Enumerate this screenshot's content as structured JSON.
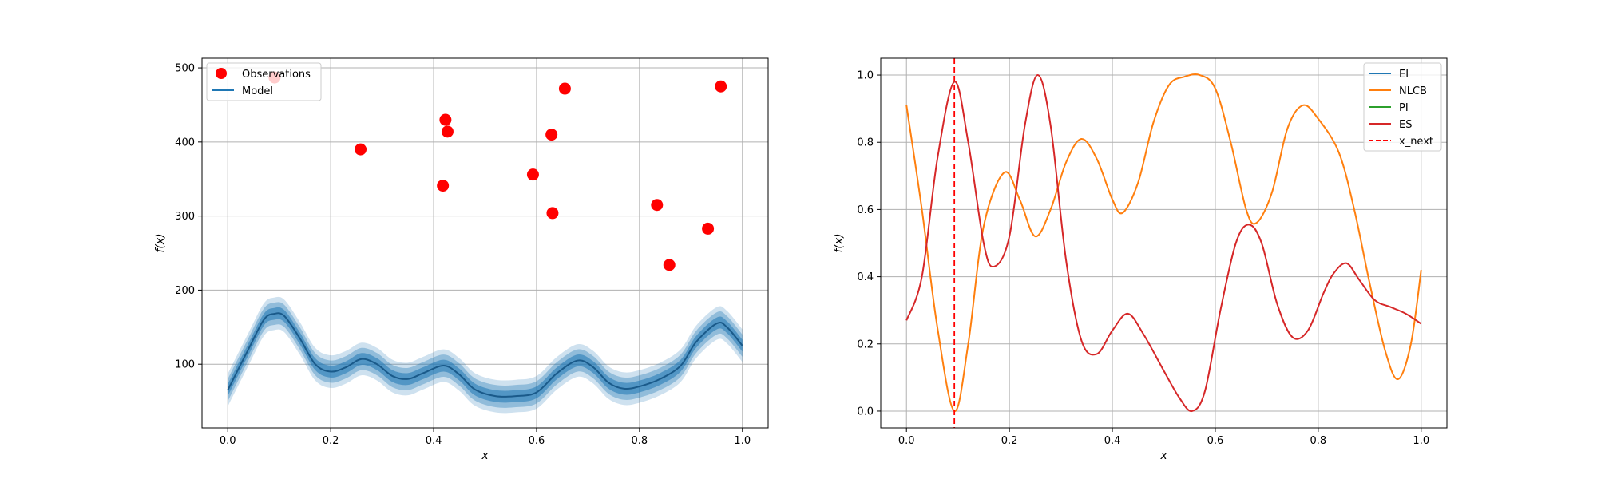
{
  "chart_data": [
    {
      "type": "scatter",
      "title": "",
      "xlabel": "x",
      "ylabel": "f(x)",
      "xlim": [
        -0.05,
        1.05
      ],
      "ylim": [
        14,
        513
      ],
      "xticks": [
        0.0,
        0.2,
        0.4,
        0.6,
        0.8,
        1.0
      ],
      "xtick_labels": [
        "0.0",
        "0.2",
        "0.4",
        "0.6",
        "0.8",
        "1.0"
      ],
      "yticks": [
        100,
        200,
        300,
        400,
        500
      ],
      "ytick_labels": [
        "100",
        "200",
        "300",
        "400",
        "500"
      ],
      "grid": true,
      "legend_position": "top-left",
      "legend": [
        {
          "label": "Observations",
          "marker": "dot",
          "color": "#ff0000"
        },
        {
          "label": "Model",
          "marker": "line",
          "color": "#1f77b4"
        }
      ],
      "observations": {
        "name": "Observations",
        "color": "#ff0000",
        "x": [
          0.091,
          0.258,
          0.418,
          0.423,
          0.427,
          0.593,
          0.629,
          0.631,
          0.655,
          0.834,
          0.858,
          0.933,
          0.958
        ],
        "y": [
          487,
          390,
          341,
          430,
          414,
          356,
          410,
          304,
          472,
          315,
          234,
          283,
          475
        ]
      },
      "model": {
        "name": "Model",
        "color": "#1f77b4",
        "x": [
          0.0,
          0.04,
          0.07,
          0.09,
          0.11,
          0.14,
          0.17,
          0.2,
          0.23,
          0.26,
          0.29,
          0.32,
          0.35,
          0.38,
          0.42,
          0.45,
          0.48,
          0.52,
          0.56,
          0.6,
          0.64,
          0.68,
          0.71,
          0.74,
          0.77,
          0.8,
          0.84,
          0.88,
          0.91,
          0.95,
          0.97,
          1.0
        ],
        "mean": [
          65,
          120,
          160,
          168,
          165,
          135,
          100,
          90,
          96,
          107,
          100,
          84,
          80,
          88,
          98,
          86,
          66,
          57,
          57,
          62,
          88,
          105,
          96,
          75,
          67,
          70,
          80,
          98,
          130,
          155,
          150,
          125
        ],
        "band_half_widths": [
          22,
          15,
          8
        ]
      }
    },
    {
      "type": "line",
      "title": "",
      "xlabel": "x",
      "ylabel": "f(x)",
      "xlim": [
        -0.05,
        1.05
      ],
      "ylim": [
        -0.05,
        1.05
      ],
      "xticks": [
        0.0,
        0.2,
        0.4,
        0.6,
        0.8,
        1.0
      ],
      "xtick_labels": [
        "0.0",
        "0.2",
        "0.4",
        "0.6",
        "0.8",
        "1.0"
      ],
      "yticks": [
        0.0,
        0.2,
        0.4,
        0.6,
        0.8,
        1.0
      ],
      "ytick_labels": [
        "0.0",
        "0.2",
        "0.4",
        "0.6",
        "0.8",
        "1.0"
      ],
      "grid": true,
      "legend_position": "top-right",
      "legend": [
        {
          "label": "EI",
          "style": "solid",
          "color": "#1f77b4"
        },
        {
          "label": "NLCB",
          "style": "solid",
          "color": "#ff7f0e"
        },
        {
          "label": "PI",
          "style": "solid",
          "color": "#2ca02c"
        },
        {
          "label": "ES",
          "style": "solid",
          "color": "#d62728"
        },
        {
          "label": "x_next",
          "style": "dashed",
          "color": "#ff0000"
        }
      ],
      "series": [
        {
          "name": "NLCB",
          "color": "#ff7f0e",
          "x": [
            0.0,
            0.03,
            0.06,
            0.093,
            0.12,
            0.15,
            0.19,
            0.22,
            0.25,
            0.28,
            0.31,
            0.34,
            0.37,
            0.4,
            0.42,
            0.45,
            0.48,
            0.51,
            0.54,
            0.57,
            0.6,
            0.63,
            0.66,
            0.68,
            0.71,
            0.74,
            0.77,
            0.8,
            0.84,
            0.87,
            0.9,
            0.93,
            0.955,
            0.98,
            1.0
          ],
          "y": [
            0.91,
            0.6,
            0.25,
            0.0,
            0.2,
            0.55,
            0.71,
            0.63,
            0.52,
            0.6,
            0.74,
            0.81,
            0.75,
            0.63,
            0.59,
            0.68,
            0.86,
            0.97,
            0.995,
            1.0,
            0.96,
            0.8,
            0.6,
            0.56,
            0.65,
            0.84,
            0.91,
            0.87,
            0.77,
            0.6,
            0.38,
            0.18,
            0.095,
            0.2,
            0.42
          ]
        },
        {
          "name": "ES",
          "color": "#d62728",
          "x": [
            0.0,
            0.03,
            0.06,
            0.093,
            0.12,
            0.15,
            0.17,
            0.2,
            0.23,
            0.255,
            0.28,
            0.31,
            0.34,
            0.37,
            0.4,
            0.43,
            0.46,
            0.5,
            0.53,
            0.555,
            0.58,
            0.61,
            0.64,
            0.665,
            0.69,
            0.72,
            0.75,
            0.78,
            0.81,
            0.83,
            0.855,
            0.88,
            0.91,
            0.94,
            0.97,
            1.0
          ],
          "y": [
            0.27,
            0.4,
            0.75,
            0.98,
            0.8,
            0.5,
            0.43,
            0.52,
            0.85,
            1.0,
            0.85,
            0.45,
            0.21,
            0.17,
            0.24,
            0.29,
            0.23,
            0.12,
            0.04,
            0.0,
            0.06,
            0.3,
            0.5,
            0.555,
            0.5,
            0.32,
            0.22,
            0.24,
            0.35,
            0.41,
            0.44,
            0.39,
            0.33,
            0.31,
            0.29,
            0.26
          ]
        }
      ],
      "x_next": 0.093
    }
  ]
}
